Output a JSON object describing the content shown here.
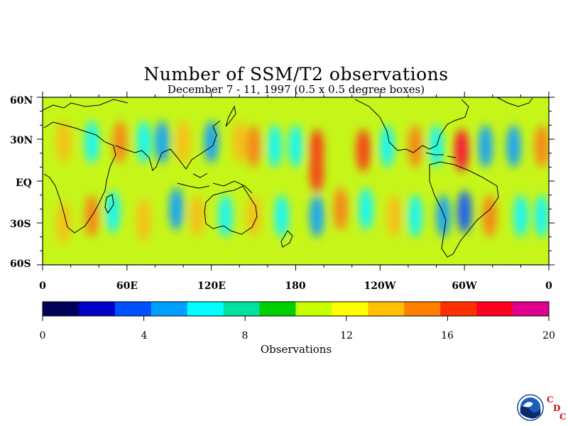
{
  "title": "Number of SSM/T2 observations",
  "subtitle": "December 7 - 11, 1997 (0.5 x 0.5 degree boxes)",
  "lat_labels": [
    "60N",
    "30N",
    "EQ",
    "30S",
    "60S"
  ],
  "lon_labels": [
    "0",
    "60E",
    "120E",
    "180",
    "120W",
    "60W",
    "0"
  ],
  "colorbar": {
    "ticks": [
      "0",
      "4",
      "8",
      "12",
      "16",
      "20"
    ],
    "label": "Observations",
    "colors": [
      "#00005a",
      "#0000c8",
      "#0050ff",
      "#00a0ff",
      "#00ffff",
      "#00e0a0",
      "#00d000",
      "#c8ff00",
      "#ffff00",
      "#ffc000",
      "#ff8000",
      "#ff3000",
      "#ff0020",
      "#e00090"
    ]
  },
  "map": {
    "lon_range": [
      0,
      360
    ],
    "lat_range": [
      -60,
      60
    ],
    "background_level": 10,
    "bands": [
      {
        "lon": 15,
        "lat": 28,
        "level": 14
      },
      {
        "lon": 15,
        "lat": -30,
        "level": 13
      },
      {
        "lon": 35,
        "lat": 28,
        "level": 7
      },
      {
        "lon": 35,
        "lat": -25,
        "level": 15
      },
      {
        "lon": 55,
        "lat": 28,
        "level": 15
      },
      {
        "lon": 50,
        "lat": -22,
        "level": 6
      },
      {
        "lon": 72,
        "lat": 28,
        "level": 6
      },
      {
        "lon": 72,
        "lat": -28,
        "level": 14
      },
      {
        "lon": 85,
        "lat": 28,
        "level": 5
      },
      {
        "lon": 95,
        "lat": -20,
        "level": 5
      },
      {
        "lon": 100,
        "lat": 28,
        "level": 14
      },
      {
        "lon": 110,
        "lat": -25,
        "level": 14
      },
      {
        "lon": 120,
        "lat": 28,
        "level": 5
      },
      {
        "lon": 130,
        "lat": -25,
        "level": 6
      },
      {
        "lon": 140,
        "lat": 28,
        "level": 14
      },
      {
        "lon": 150,
        "lat": 25,
        "level": 15
      },
      {
        "lon": 150,
        "lat": -25,
        "level": 14
      },
      {
        "lon": 165,
        "lat": 25,
        "level": 6
      },
      {
        "lon": 170,
        "lat": -25,
        "level": 6
      },
      {
        "lon": 180,
        "lat": 25,
        "level": 7
      },
      {
        "lon": 195,
        "lat": 22,
        "level": 17
      },
      {
        "lon": 195,
        "lat": 7,
        "level": 17
      },
      {
        "lon": 195,
        "lat": -25,
        "level": 5
      },
      {
        "lon": 212,
        "lat": -20,
        "level": 15
      },
      {
        "lon": 228,
        "lat": 22,
        "level": 17
      },
      {
        "lon": 230,
        "lat": -20,
        "level": 6
      },
      {
        "lon": 245,
        "lat": 25,
        "level": 6
      },
      {
        "lon": 250,
        "lat": -25,
        "level": 14
      },
      {
        "lon": 265,
        "lat": 25,
        "level": 15
      },
      {
        "lon": 265,
        "lat": -25,
        "level": 6
      },
      {
        "lon": 280,
        "lat": 25,
        "level": 6
      },
      {
        "lon": 285,
        "lat": -25,
        "level": 5
      },
      {
        "lon": 298,
        "lat": 22,
        "level": 18
      },
      {
        "lon": 300,
        "lat": -22,
        "level": 4
      },
      {
        "lon": 315,
        "lat": 25,
        "level": 5
      },
      {
        "lon": 318,
        "lat": -25,
        "level": 15
      },
      {
        "lon": 335,
        "lat": 25,
        "level": 5
      },
      {
        "lon": 340,
        "lat": -25,
        "level": 6
      },
      {
        "lon": 355,
        "lat": 25,
        "level": 15
      },
      {
        "lon": 355,
        "lat": -25,
        "level": 6
      }
    ]
  }
}
